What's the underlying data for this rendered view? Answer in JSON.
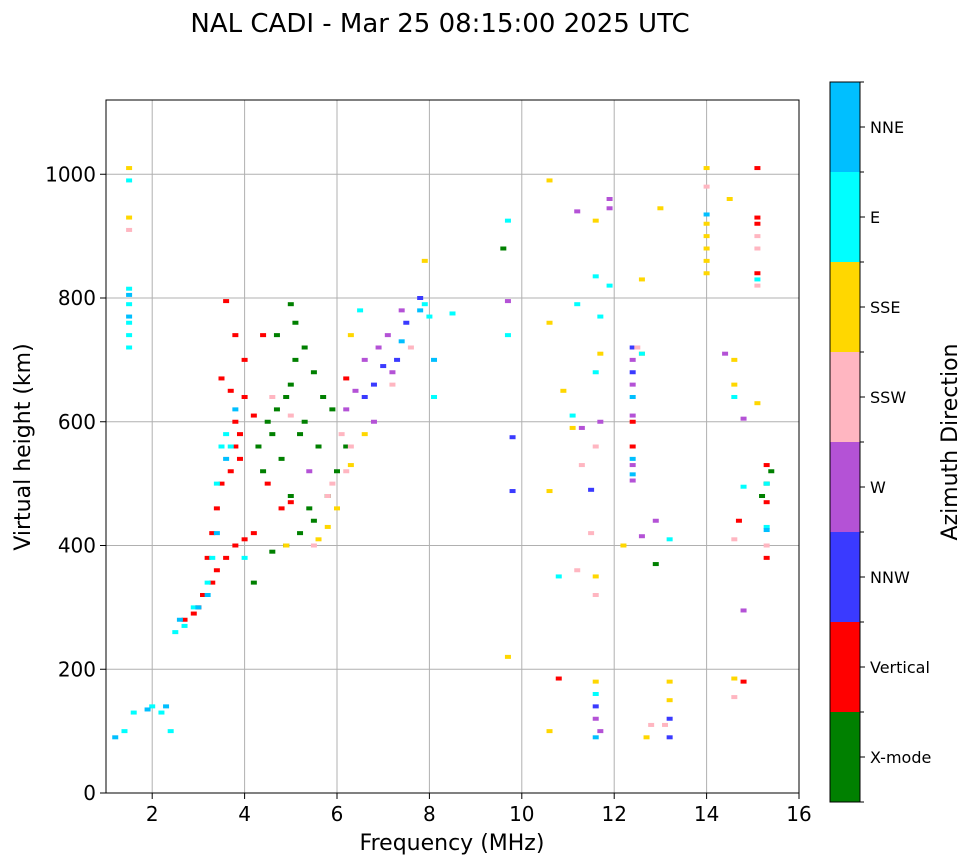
{
  "chart_data": {
    "type": "scatter",
    "title": "NAL CADI - Mar 25 08:15:00 2025 UTC",
    "xlabel": "Frequency (MHz)",
    "ylabel": "Virtual height (km)",
    "xlim": [
      1,
      16
    ],
    "ylim": [
      0,
      1120
    ],
    "xticks": [
      "2",
      "4",
      "6",
      "8",
      "10",
      "12",
      "14",
      "16"
    ],
    "yticks": [
      "0",
      "200",
      "400",
      "600",
      "800",
      "1000"
    ],
    "grid": true,
    "colorbar": {
      "title": "Azimuth Direction",
      "categories": [
        {
          "name": "X-mode",
          "color": "#008000"
        },
        {
          "name": "Vertical",
          "color": "#ff0000"
        },
        {
          "name": "NNW",
          "color": "#3a3aff"
        },
        {
          "name": "W",
          "color": "#b452d6"
        },
        {
          "name": "SSW",
          "color": "#ffb6c1"
        },
        {
          "name": "SSE",
          "color": "#ffd700"
        },
        {
          "name": "E",
          "color": "#00ffff"
        },
        {
          "name": "NNE",
          "color": "#00bfff"
        }
      ]
    },
    "series": [
      {
        "name": "X-mode",
        "points": [
          [
            4.3,
            560
          ],
          [
            4.5,
            600
          ],
          [
            4.7,
            620
          ],
          [
            4.9,
            640
          ],
          [
            5.0,
            660
          ],
          [
            5.1,
            700
          ],
          [
            5.3,
            720
          ],
          [
            5.5,
            680
          ],
          [
            5.7,
            640
          ],
          [
            5.9,
            620
          ],
          [
            4.8,
            540
          ],
          [
            5.2,
            580
          ],
          [
            5.6,
            560
          ],
          [
            4.4,
            520
          ],
          [
            5.0,
            480
          ],
          [
            5.4,
            460
          ],
          [
            5.8,
            480
          ],
          [
            5.5,
            440
          ],
          [
            5.2,
            420
          ],
          [
            4.9,
            400
          ],
          [
            4.6,
            390
          ],
          [
            6.0,
            520
          ],
          [
            6.2,
            560
          ],
          [
            4.2,
            340
          ],
          [
            5.1,
            760
          ],
          [
            5.0,
            790
          ],
          [
            4.7,
            740
          ],
          [
            9.6,
            880
          ],
          [
            12.9,
            370
          ],
          [
            15.2,
            480
          ],
          [
            15.3,
            500
          ],
          [
            15.4,
            520
          ],
          [
            5.3,
            600
          ],
          [
            4.6,
            580
          ]
        ]
      },
      {
        "name": "Vertical",
        "points": [
          [
            3.6,
            795
          ],
          [
            3.8,
            740
          ],
          [
            4.4,
            740
          ],
          [
            4.0,
            700
          ],
          [
            3.5,
            670
          ],
          [
            3.7,
            650
          ],
          [
            3.8,
            600
          ],
          [
            3.9,
            580
          ],
          [
            3.8,
            560
          ],
          [
            3.9,
            540
          ],
          [
            3.7,
            520
          ],
          [
            3.5,
            500
          ],
          [
            3.4,
            460
          ],
          [
            3.3,
            420
          ],
          [
            3.2,
            380
          ],
          [
            3.4,
            360
          ],
          [
            3.6,
            380
          ],
          [
            3.8,
            400
          ],
          [
            4.0,
            410
          ],
          [
            4.2,
            420
          ],
          [
            3.3,
            340
          ],
          [
            3.1,
            320
          ],
          [
            3.0,
            300
          ],
          [
            2.9,
            290
          ],
          [
            2.7,
            280
          ],
          [
            4.5,
            500
          ],
          [
            4.8,
            460
          ],
          [
            5.0,
            470
          ],
          [
            6.2,
            670
          ],
          [
            12.4,
            600
          ],
          [
            12.4,
            560
          ],
          [
            14.7,
            440
          ],
          [
            15.1,
            1010
          ],
          [
            15.1,
            930
          ],
          [
            15.1,
            920
          ],
          [
            15.1,
            840
          ],
          [
            15.3,
            530
          ],
          [
            15.3,
            470
          ],
          [
            15.3,
            380
          ],
          [
            14.8,
            180
          ],
          [
            10.8,
            185
          ],
          [
            4.0,
            640
          ],
          [
            4.2,
            610
          ]
        ]
      },
      {
        "name": "NNW",
        "points": [
          [
            7.8,
            800
          ],
          [
            6.8,
            660
          ],
          [
            7.0,
            690
          ],
          [
            7.3,
            700
          ],
          [
            6.6,
            640
          ],
          [
            9.8,
            575
          ],
          [
            9.8,
            488
          ],
          [
            11.5,
            490
          ],
          [
            12.4,
            720
          ],
          [
            12.4,
            680
          ],
          [
            13.2,
            90
          ],
          [
            13.2,
            120
          ],
          [
            11.6,
            140
          ],
          [
            7.5,
            760
          ]
        ]
      },
      {
        "name": "W",
        "points": [
          [
            6.6,
            700
          ],
          [
            6.9,
            720
          ],
          [
            7.1,
            740
          ],
          [
            6.4,
            650
          ],
          [
            6.2,
            620
          ],
          [
            7.2,
            680
          ],
          [
            9.7,
            795
          ],
          [
            11.9,
            945
          ],
          [
            11.9,
            960
          ],
          [
            11.2,
            940
          ],
          [
            12.4,
            700
          ],
          [
            12.4,
            660
          ],
          [
            12.4,
            610
          ],
          [
            12.4,
            530
          ],
          [
            12.4,
            505
          ],
          [
            12.9,
            440
          ],
          [
            12.6,
            415
          ],
          [
            14.4,
            710
          ],
          [
            14.8,
            605
          ],
          [
            14.8,
            295
          ],
          [
            11.7,
            100
          ],
          [
            11.6,
            120
          ],
          [
            11.7,
            600
          ],
          [
            11.3,
            590
          ],
          [
            7.4,
            780
          ],
          [
            6.8,
            600
          ],
          [
            5.4,
            520
          ]
        ]
      },
      {
        "name": "SSW",
        "points": [
          [
            1.5,
            910
          ],
          [
            4.6,
            640
          ],
          [
            5.0,
            610
          ],
          [
            5.8,
            480
          ],
          [
            5.9,
            500
          ],
          [
            6.2,
            520
          ],
          [
            6.3,
            560
          ],
          [
            6.1,
            580
          ],
          [
            14.0,
            980
          ],
          [
            15.1,
            880
          ],
          [
            15.1,
            900
          ],
          [
            15.1,
            820
          ],
          [
            15.3,
            400
          ],
          [
            14.6,
            155
          ],
          [
            14.6,
            410
          ],
          [
            13.1,
            110
          ],
          [
            12.8,
            110
          ],
          [
            11.5,
            420
          ],
          [
            11.6,
            320
          ],
          [
            11.6,
            560
          ],
          [
            11.3,
            530
          ],
          [
            11.2,
            360
          ],
          [
            12.5,
            720
          ],
          [
            7.6,
            720
          ],
          [
            7.2,
            660
          ],
          [
            5.5,
            400
          ]
        ]
      },
      {
        "name": "SSE",
        "points": [
          [
            1.5,
            930
          ],
          [
            1.5,
            1010
          ],
          [
            14.0,
            1010
          ],
          [
            14.0,
            920
          ],
          [
            14.0,
            880
          ],
          [
            14.0,
            860
          ],
          [
            14.0,
            840
          ],
          [
            14.0,
            900
          ],
          [
            10.6,
            990
          ],
          [
            10.6,
            760
          ],
          [
            10.6,
            488
          ],
          [
            10.6,
            100
          ],
          [
            9.7,
            220
          ],
          [
            11.6,
            925
          ],
          [
            11.6,
            180
          ],
          [
            11.6,
            350
          ],
          [
            13.0,
            945
          ],
          [
            12.6,
            830
          ],
          [
            12.6,
            710
          ],
          [
            12.7,
            90
          ],
          [
            13.2,
            180
          ],
          [
            13.2,
            150
          ],
          [
            14.6,
            185
          ],
          [
            14.6,
            660
          ],
          [
            14.6,
            700
          ],
          [
            15.1,
            630
          ],
          [
            6.3,
            740
          ],
          [
            6.3,
            530
          ],
          [
            6.0,
            460
          ],
          [
            5.8,
            430
          ],
          [
            5.6,
            410
          ],
          [
            7.9,
            860
          ],
          [
            6.6,
            580
          ],
          [
            4.9,
            400
          ],
          [
            11.1,
            590
          ],
          [
            11.7,
            710
          ],
          [
            12.2,
            400
          ],
          [
            14.5,
            960
          ],
          [
            10.9,
            650
          ]
        ]
      },
      {
        "name": "E",
        "points": [
          [
            1.5,
            760
          ],
          [
            1.5,
            790
          ],
          [
            1.5,
            815
          ],
          [
            1.5,
            740
          ],
          [
            1.5,
            720
          ],
          [
            1.5,
            990
          ],
          [
            1.6,
            130
          ],
          [
            1.4,
            100
          ],
          [
            2.0,
            140
          ],
          [
            2.2,
            130
          ],
          [
            2.5,
            260
          ],
          [
            2.7,
            270
          ],
          [
            2.9,
            300
          ],
          [
            3.3,
            380
          ],
          [
            3.4,
            500
          ],
          [
            3.5,
            560
          ],
          [
            3.6,
            580
          ],
          [
            3.7,
            560
          ],
          [
            9.7,
            925
          ],
          [
            9.7,
            740
          ],
          [
            11.6,
            835
          ],
          [
            11.7,
            770
          ],
          [
            11.2,
            790
          ],
          [
            11.9,
            820
          ],
          [
            11.6,
            680
          ],
          [
            12.6,
            710
          ],
          [
            13.2,
            410
          ],
          [
            14.6,
            640
          ],
          [
            14.8,
            495
          ],
          [
            15.1,
            830
          ],
          [
            15.3,
            430
          ],
          [
            15.3,
            500
          ],
          [
            7.9,
            790
          ],
          [
            8.0,
            770
          ],
          [
            8.5,
            775
          ],
          [
            8.1,
            640
          ],
          [
            6.5,
            780
          ],
          [
            4.0,
            380
          ],
          [
            3.2,
            340
          ],
          [
            2.4,
            100
          ],
          [
            11.6,
            160
          ],
          [
            11.1,
            610
          ],
          [
            10.8,
            350
          ]
        ]
      },
      {
        "name": "NNE",
        "points": [
          [
            1.5,
            805
          ],
          [
            1.5,
            770
          ],
          [
            1.2,
            90
          ],
          [
            1.9,
            135
          ],
          [
            2.3,
            140
          ],
          [
            2.6,
            280
          ],
          [
            3.0,
            300
          ],
          [
            3.2,
            320
          ],
          [
            3.4,
            420
          ],
          [
            3.6,
            540
          ],
          [
            7.8,
            780
          ],
          [
            7.4,
            730
          ],
          [
            8.1,
            700
          ],
          [
            14.0,
            935
          ],
          [
            12.4,
            640
          ],
          [
            12.4,
            540
          ],
          [
            12.4,
            515
          ],
          [
            11.6,
            90
          ],
          [
            15.3,
            425
          ],
          [
            3.8,
            620
          ]
        ]
      }
    ]
  }
}
